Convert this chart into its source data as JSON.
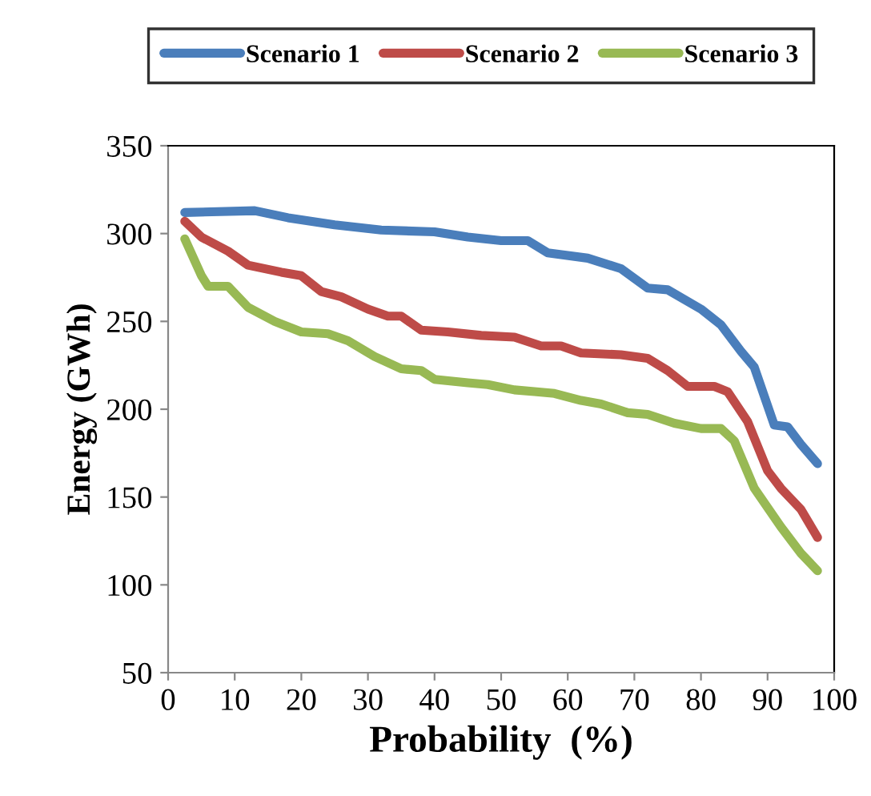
{
  "chart_data": {
    "type": "line",
    "xlabel": "Probability  (%)",
    "ylabel": "Energy (GWh)",
    "xlim": [
      0,
      100
    ],
    "xticks": [
      0,
      10,
      20,
      30,
      40,
      50,
      60,
      70,
      80,
      90,
      100
    ],
    "ylim": [
      50,
      350
    ],
    "yticks": [
      50,
      100,
      150,
      200,
      250,
      300,
      350
    ],
    "grid": false,
    "legend": "top",
    "marker": "none",
    "line_style": "solid",
    "series": [
      {
        "name": "Scenario 1",
        "color": "#4a7ebb",
        "x": [
          2.5,
          13,
          18,
          25,
          32,
          40,
          45,
          50,
          54,
          57,
          63,
          68,
          72,
          75,
          80,
          83,
          86,
          88,
          91,
          93,
          95,
          97.5
        ],
        "values": [
          312,
          313,
          309,
          305,
          302,
          301,
          298,
          296,
          296,
          289,
          286,
          280,
          269,
          268,
          257,
          248,
          233,
          224,
          191,
          190,
          180,
          169
        ]
      },
      {
        "name": "Scenario 2",
        "color": "#be4b48",
        "x": [
          2.5,
          5,
          9,
          12,
          17,
          20,
          23,
          26,
          30,
          33,
          35,
          38,
          42,
          47,
          52,
          56,
          59,
          62,
          68,
          72,
          75,
          78,
          82,
          84,
          87,
          90,
          92,
          95,
          97.5
        ],
        "values": [
          307,
          298,
          290,
          282,
          278,
          276,
          267,
          264,
          257,
          253,
          253,
          245,
          244,
          242,
          241,
          236,
          236,
          232,
          231,
          229,
          222,
          213,
          213,
          210,
          193,
          165,
          155,
          143,
          127
        ]
      },
      {
        "name": "Scenario 3",
        "color": "#98b954",
        "x": [
          2.5,
          5,
          6,
          9,
          12,
          16,
          20,
          24,
          27,
          31,
          35,
          38,
          40,
          45,
          48,
          52,
          55,
          58,
          62,
          65,
          69,
          72,
          76,
          80,
          83,
          85,
          88,
          92,
          95,
          97.5
        ],
        "values": [
          297,
          276,
          270,
          270,
          258,
          250,
          244,
          243,
          239,
          230,
          223,
          222,
          217,
          215,
          214,
          211,
          210,
          209,
          205,
          203,
          198,
          197,
          192,
          189,
          189,
          182,
          155,
          133,
          118,
          108
        ]
      }
    ]
  }
}
